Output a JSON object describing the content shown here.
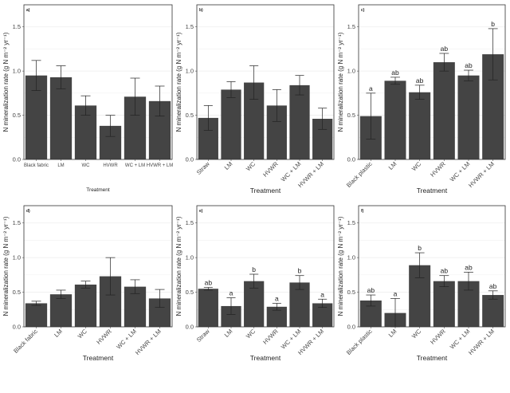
{
  "colors": {
    "bar": "#444444",
    "panel_border": "#333333",
    "grid": "#eeeeee",
    "error_bar": "#222222"
  },
  "chart_data": [
    {
      "type": "bar",
      "panel_label": "a)",
      "categories": [
        "Black fabric",
        "LM",
        "WC",
        "HVWR",
        "WC + LM",
        "HVWR + LM"
      ],
      "values": [
        0.95,
        0.93,
        0.61,
        0.38,
        0.71,
        0.66
      ],
      "errors": [
        0.17,
        0.13,
        0.11,
        0.12,
        0.21,
        0.17
      ],
      "significance": [
        "",
        "",
        "",
        "",
        "",
        ""
      ],
      "ylim": [
        0,
        1.75
      ],
      "yticks": [
        "0.0",
        "0.5",
        "1.0",
        "1.5"
      ],
      "ylabel": "N mineralization rate (g N m⁻² yr⁻¹)",
      "xlabel": "Treatment",
      "rotated_ticks": false
    },
    {
      "type": "bar",
      "panel_label": "b)",
      "categories": [
        "Straw",
        "LM",
        "WC",
        "HVWR",
        "WC + LM",
        "HVWR + LM"
      ],
      "values": [
        0.47,
        0.79,
        0.87,
        0.61,
        0.84,
        0.46
      ],
      "errors": [
        0.14,
        0.09,
        0.19,
        0.18,
        0.11,
        0.12
      ],
      "significance": [
        "",
        "",
        "",
        "",
        "",
        ""
      ],
      "ylim": [
        0,
        1.75
      ],
      "yticks": [
        "0.0",
        "0.5",
        "1.0",
        "1.5"
      ],
      "ylabel": "N mineralization rate (g N m⁻² yr⁻¹)",
      "xlabel": "Treatment",
      "rotated_ticks": true
    },
    {
      "type": "bar",
      "panel_label": "c)",
      "categories": [
        "Black plastic",
        "LM",
        "WC",
        "HVWR",
        "WC + LM",
        "HVWR + LM"
      ],
      "values": [
        0.49,
        0.89,
        0.76,
        1.1,
        0.95,
        1.19
      ],
      "errors": [
        0.26,
        0.04,
        0.08,
        0.1,
        0.06,
        0.29
      ],
      "significance": [
        "a",
        "ab",
        "ab",
        "ab",
        "ab",
        "b"
      ],
      "ylim": [
        0,
        1.75
      ],
      "yticks": [
        "0.0",
        "0.5",
        "1.0",
        "1.5"
      ],
      "ylabel": "N mineralization rate (g N m⁻² yr⁻¹)",
      "xlabel": "Treatment",
      "rotated_ticks": true
    },
    {
      "type": "bar",
      "panel_label": "d)",
      "categories": [
        "Black fabric",
        "LM",
        "WC",
        "HVWR",
        "WC + LM",
        "HVWR + LM"
      ],
      "values": [
        0.34,
        0.47,
        0.61,
        0.73,
        0.58,
        0.41
      ],
      "errors": [
        0.03,
        0.06,
        0.05,
        0.27,
        0.1,
        0.13
      ],
      "significance": [
        "",
        "",
        "",
        "",
        "",
        ""
      ],
      "ylim": [
        0,
        1.75
      ],
      "yticks": [
        "0.0",
        "0.5",
        "1.0",
        "1.5"
      ],
      "ylabel": "N mineralization rate (g N m⁻² yr⁻¹)",
      "xlabel": "Treatment",
      "rotated_ticks": true
    },
    {
      "type": "bar",
      "panel_label": "e)",
      "categories": [
        "Straw",
        "LM",
        "WC",
        "HVWR",
        "WC + LM",
        "HVWR + LM"
      ],
      "values": [
        0.55,
        0.3,
        0.66,
        0.29,
        0.64,
        0.34
      ],
      "errors": [
        0.02,
        0.12,
        0.1,
        0.05,
        0.1,
        0.06
      ],
      "significance": [
        "ab",
        "a",
        "b",
        "a",
        "b",
        "a"
      ],
      "ylim": [
        0,
        1.75
      ],
      "yticks": [
        "0.0",
        "0.5",
        "1.0",
        "1.5"
      ],
      "ylabel": "N mineralization rate (g N m⁻² yr⁻¹)",
      "xlabel": "Treatment",
      "rotated_ticks": true
    },
    {
      "type": "bar",
      "panel_label": "f)",
      "categories": [
        "Black plastic",
        "LM",
        "WC",
        "HVWR",
        "WC + LM",
        "HVWR + LM"
      ],
      "values": [
        0.38,
        0.2,
        0.89,
        0.66,
        0.66,
        0.46
      ],
      "errors": [
        0.08,
        0.21,
        0.18,
        0.08,
        0.13,
        0.06
      ],
      "significance": [
        "ab",
        "a",
        "b",
        "ab",
        "ab",
        "ab"
      ],
      "ylim": [
        0,
        1.75
      ],
      "yticks": [
        "0.0",
        "0.5",
        "1.0",
        "1.5"
      ],
      "ylabel": "N mineralization rate (g N m⁻² yr⁻¹)",
      "xlabel": "Treatment",
      "rotated_ticks": true
    }
  ]
}
